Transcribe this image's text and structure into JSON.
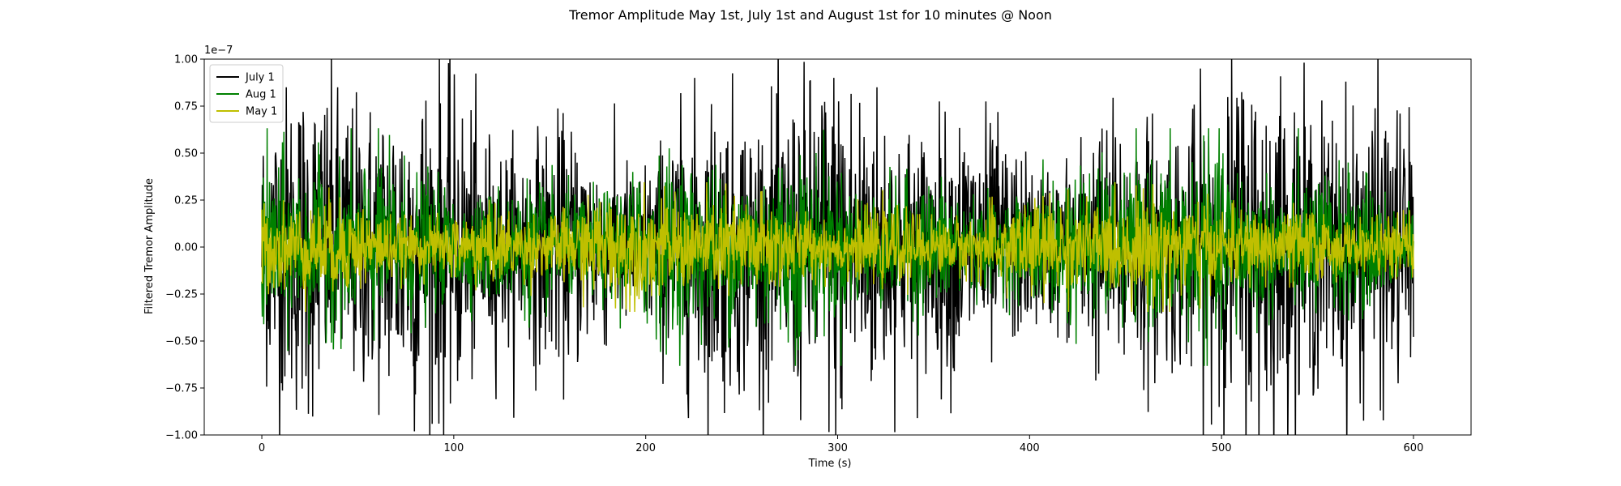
{
  "chart_data": {
    "type": "line",
    "title": "Tremor Amplitude May 1st, July 1st and August 1st for 10 minutes @ Noon",
    "xlabel": "Time (s)",
    "ylabel": "Filtered Tremor Amplitude",
    "y_offset_text": "1e−7",
    "xlim": [
      -30,
      630
    ],
    "ylim": [
      -1.0,
      1.0
    ],
    "x_ticks": [
      0,
      100,
      200,
      300,
      400,
      500,
      600
    ],
    "x_tick_labels": [
      "0",
      "100",
      "200",
      "300",
      "400",
      "500",
      "600"
    ],
    "y_ticks": [
      -1.0,
      -0.75,
      -0.5,
      -0.25,
      0.0,
      0.25,
      0.5,
      0.75,
      1.0
    ],
    "y_tick_labels": [
      "−1.00",
      "−0.75",
      "−0.50",
      "−0.25",
      "0.00",
      "0.25",
      "0.50",
      "0.75",
      "1.00"
    ],
    "legend": {
      "position": "top-left"
    },
    "grid": false,
    "series": [
      {
        "name": "July 1",
        "color": "#000000",
        "x_range": [
          0,
          600
        ],
        "approx_peak_amplitude": 0.95,
        "typical_envelope": 0.55
      },
      {
        "name": "Aug 1",
        "color": "#008000",
        "x_range": [
          0,
          600
        ],
        "approx_peak_amplitude": 0.55,
        "typical_envelope": 0.3
      },
      {
        "name": "May 1",
        "color": "#bfbf00",
        "x_range": [
          0,
          600
        ],
        "approx_peak_amplitude": 0.3,
        "typical_envelope": 0.17
      }
    ]
  }
}
